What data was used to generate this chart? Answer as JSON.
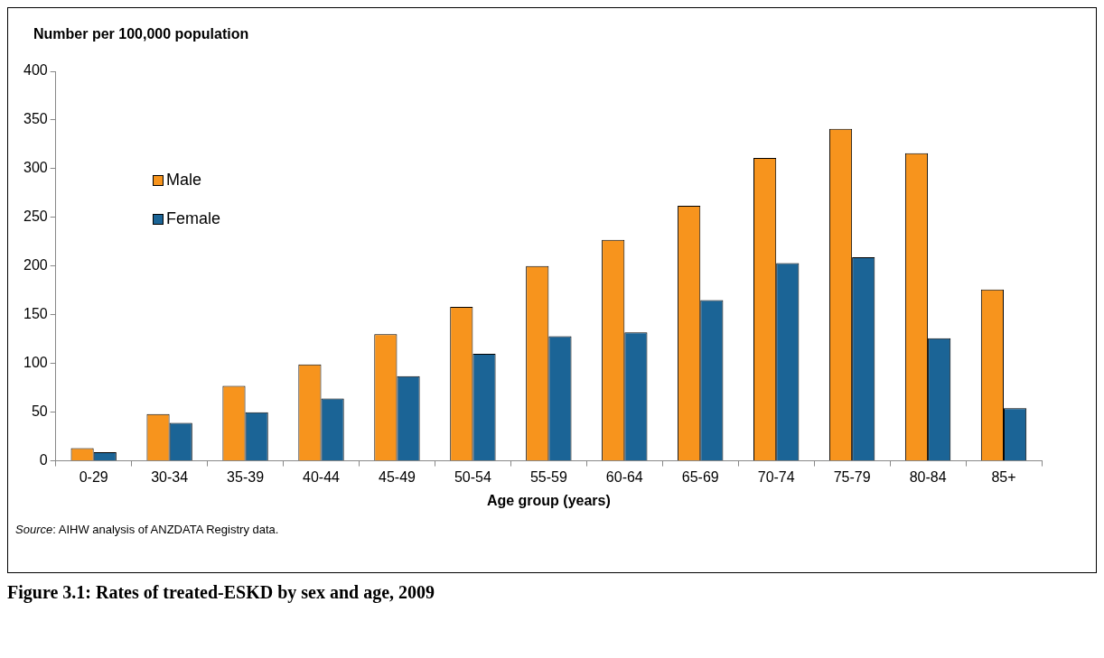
{
  "chart_data": {
    "type": "bar",
    "title": "Figure 3.1: Rates of treated-ESKD by sex and age, 2009",
    "xlabel": "Age group (years)",
    "ylabel": "Number per 100,000 population",
    "categories": [
      "0-29",
      "30-34",
      "35-39",
      "40-44",
      "45-49",
      "50-54",
      "55-59",
      "60-64",
      "65-69",
      "70-74",
      "75-79",
      "80-84",
      "85+"
    ],
    "series": [
      {
        "name": "Male",
        "color": "#f7941d",
        "values": [
          13,
          48,
          77,
          99,
          130,
          158,
          200,
          227,
          262,
          311,
          341,
          316,
          176
        ]
      },
      {
        "name": "Female",
        "color": "#1b6496",
        "values": [
          9,
          39,
          50,
          64,
          87,
          110,
          128,
          132,
          165,
          203,
          209,
          126,
          54
        ]
      }
    ],
    "ylim": [
      0,
      400
    ],
    "yticks": [
      0,
      50,
      100,
      150,
      200,
      250,
      300,
      350,
      400
    ],
    "grid": false,
    "legend": "top left",
    "annotations": [
      "Source: AIHW analysis of ANZDATA Registry data."
    ]
  }
}
